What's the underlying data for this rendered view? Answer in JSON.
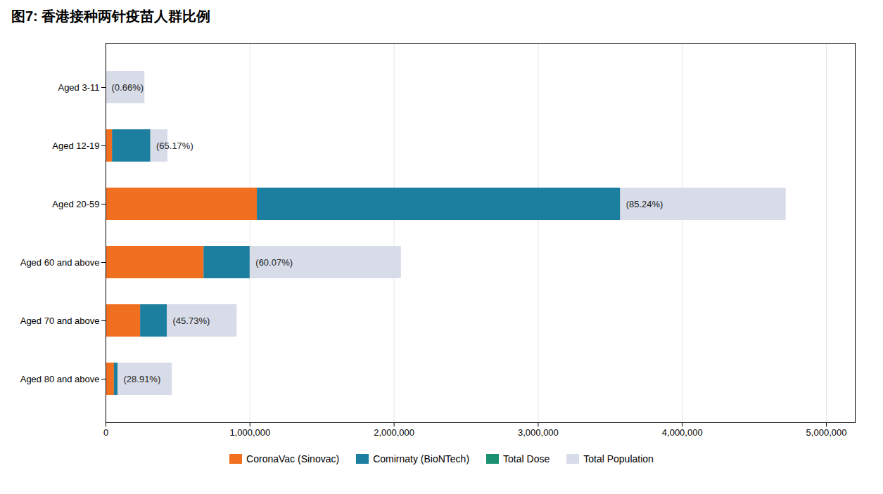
{
  "chart_data": {
    "type": "bar",
    "orientation": "horizontal",
    "stacked": true,
    "title": "图7: 香港接种两针疫苗人群比例",
    "categories": [
      "Aged 3-11",
      "Aged 12-19",
      "Aged 20-59",
      "Aged 60 and above",
      "Aged 70 and above",
      "Aged 80 and above"
    ],
    "series": [
      {
        "name": "CoronaVac (Sinovac)",
        "type": "stacked_bar",
        "color": "#f07020",
        "values": [
          0,
          45000,
          1050000,
          680000,
          240000,
          58000
        ]
      },
      {
        "name": "Comirnaty (BioNTech)",
        "type": "stacked_bar",
        "color": "#1d7fa0",
        "values": [
          0,
          265000,
          2520000,
          320000,
          185000,
          25000
        ]
      },
      {
        "name": "Total Dose",
        "type": "stacked_bar",
        "color": "#1a9070",
        "values": [
          null,
          null,
          null,
          null,
          null,
          null
        ]
      },
      {
        "name": "Total Population",
        "type": "bar",
        "color": "#d8dce8",
        "values": [
          270000,
          430000,
          4720000,
          2050000,
          910000,
          460000
        ]
      }
    ],
    "annotations": [
      {
        "category": "Aged 3-11",
        "text": "(0.66%)"
      },
      {
        "category": "Aged 12-19",
        "text": "(65.17%)"
      },
      {
        "category": "Aged 20-59",
        "text": "(85.24%)"
      },
      {
        "category": "Aged 60 and above",
        "text": "(60.07%)"
      },
      {
        "category": "Aged 70 and above",
        "text": "(45.73%)"
      },
      {
        "category": "Aged 80 and above",
        "text": "(28.91%)"
      }
    ],
    "xlim": [
      0,
      5200000
    ],
    "xticks": [
      0,
      {
        "value": 1000000,
        "label": "1,000,000"
      },
      {
        "value": 2000000,
        "label": "2,000,000"
      },
      {
        "value": 3000000,
        "label": "3,000,000"
      },
      {
        "value": 4000000,
        "label": "4,000,000"
      },
      {
        "value": 5000000,
        "label": "5,000,000"
      }
    ],
    "grid": true
  }
}
